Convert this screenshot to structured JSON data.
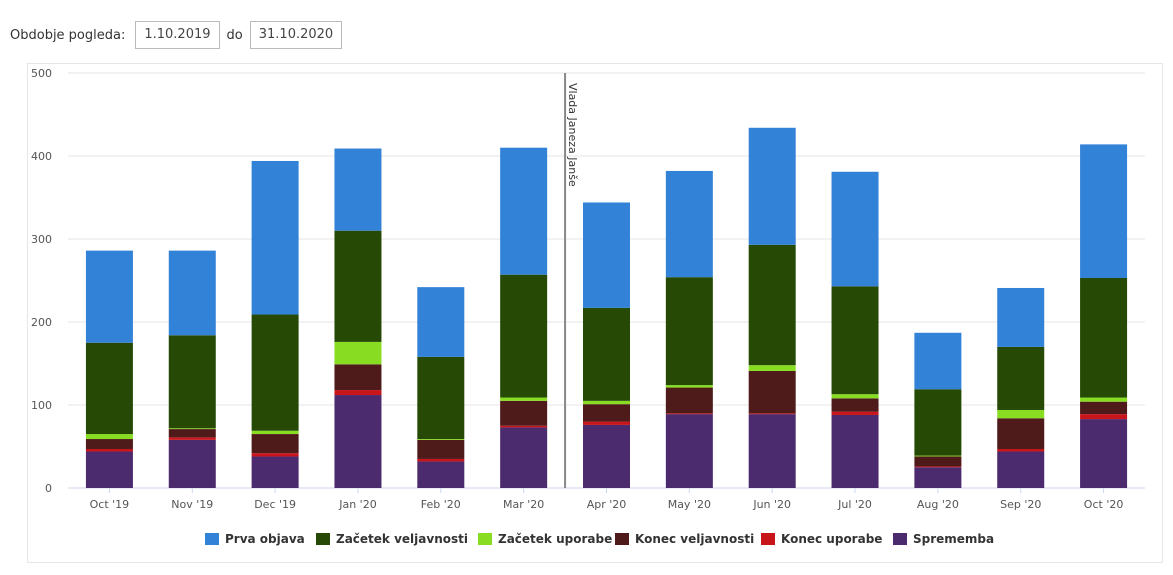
{
  "period": {
    "label": "Obdobje pogleda:",
    "from": "1.10.2019",
    "separator": "do",
    "to": "31.10.2020"
  },
  "chart_data": {
    "type": "bar",
    "stacked": true,
    "categories": [
      "Oct '19",
      "Nov '19",
      "Dec '19",
      "Jan '20",
      "Feb '20",
      "Mar '20",
      "Apr '20",
      "May '20",
      "Jun '20",
      "Jul '20",
      "Aug '20",
      "Sep '20",
      "Oct '20"
    ],
    "ylim": [
      0,
      500
    ],
    "yticks": [
      0,
      100,
      200,
      300,
      400,
      500
    ],
    "grid": true,
    "legend_position": "bottom",
    "series": [
      {
        "name": "Sprememba",
        "color": "#4b2a6e",
        "values": [
          44,
          58,
          38,
          112,
          32,
          73,
          76,
          89,
          89,
          88,
          25,
          44,
          83
        ]
      },
      {
        "name": "Konec uporabe",
        "color": "#c8151b",
        "values": [
          3,
          3,
          4,
          6,
          3,
          2,
          4,
          1,
          1,
          4,
          1,
          3,
          6
        ]
      },
      {
        "name": "Konec veljavnosti",
        "color": "#4e1a1a",
        "values": [
          12,
          10,
          23,
          31,
          23,
          30,
          21,
          31,
          51,
          16,
          12,
          37,
          15
        ]
      },
      {
        "name": "Začetek uporabe",
        "color": "#88dd22",
        "values": [
          6,
          1,
          4,
          27,
          1,
          4,
          4,
          3,
          7,
          5,
          1,
          10,
          5
        ]
      },
      {
        "name": "Začetek veljavnosti",
        "color": "#264a05",
        "values": [
          110,
          112,
          140,
          134,
          99,
          148,
          112,
          130,
          145,
          130,
          80,
          76,
          144
        ]
      },
      {
        "name": "Prva objava",
        "color": "#3282d8",
        "values": [
          111,
          102,
          185,
          99,
          84,
          153,
          127,
          128,
          141,
          138,
          68,
          71,
          161
        ]
      }
    ],
    "legend_order": [
      "Prva objava",
      "Začetek veljavnosti",
      "Začetek uporabe",
      "Konec veljavnosti",
      "Konec uporabe",
      "Sprememba"
    ],
    "annotations": [
      {
        "text": "Vlada Janeza Janše",
        "after_category": "Mar '20"
      }
    ]
  }
}
